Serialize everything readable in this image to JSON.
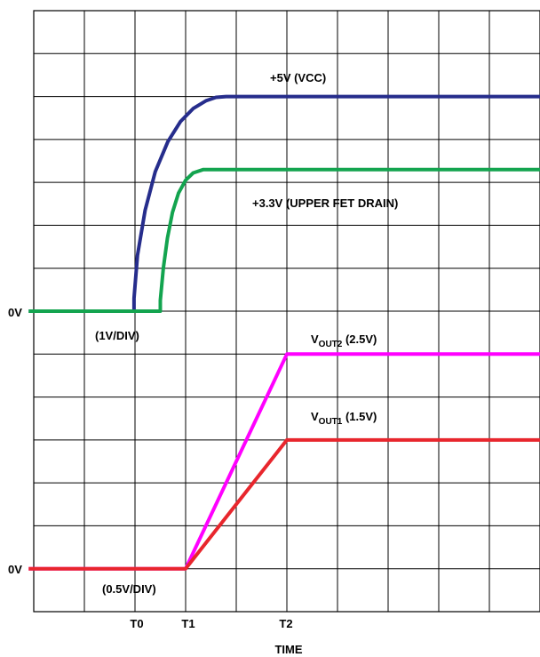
{
  "chart_data": {
    "type": "line",
    "xlabel": "TIME",
    "x_ticks": [
      {
        "label": "T0",
        "x": 2
      },
      {
        "label": "T1",
        "x": 3
      },
      {
        "label": "T2",
        "x": 5
      }
    ],
    "xlim": [
      -0.1,
      10
    ],
    "grid": true,
    "panels": [
      {
        "name": "upper",
        "scale_label": "(1V/DIV)",
        "zero_label": "0V",
        "ylim": [
          -1,
          7
        ],
        "series": [
          {
            "name": "+5V (VCC)",
            "color": "#262d8c",
            "points": [
              [
                -0.1,
                0
              ],
              [
                1.98,
                0
              ],
              [
                1.98,
                0.3
              ],
              [
                2.05,
                1.3
              ],
              [
                2.2,
                2.35
              ],
              [
                2.4,
                3.25
              ],
              [
                2.65,
                3.95
              ],
              [
                2.9,
                4.42
              ],
              [
                3.15,
                4.72
              ],
              [
                3.4,
                4.9
              ],
              [
                3.6,
                4.98
              ],
              [
                3.8,
                5
              ],
              [
                10,
                5
              ]
            ]
          },
          {
            "name": "+3.3V (UPPER FET DRAIN)",
            "color": "#13a44f",
            "points": [
              [
                -0.1,
                0
              ],
              [
                2.5,
                0
              ],
              [
                2.5,
                0.25
              ],
              [
                2.56,
                1.0
              ],
              [
                2.64,
                1.7
              ],
              [
                2.74,
                2.3
              ],
              [
                2.86,
                2.75
              ],
              [
                3.0,
                3.05
              ],
              [
                3.15,
                3.22
              ],
              [
                3.35,
                3.3
              ],
              [
                10,
                3.3
              ]
            ]
          }
        ]
      },
      {
        "name": "lower",
        "scale_label": "(0.5V/DIV)",
        "zero_label": "0V",
        "ylim": [
          -0.25,
          3.5
        ],
        "series": [
          {
            "name": "VOUT2 (2.5V)",
            "label_main": "V",
            "label_sub": "OUT2",
            "label_tail": " (2.5V)",
            "color": "#ff00ff",
            "points": [
              [
                -0.1,
                0
              ],
              [
                3,
                0
              ],
              [
                5,
                2.5
              ],
              [
                10,
                2.5
              ]
            ]
          },
          {
            "name": "VOUT1 (1.5V)",
            "label_main": "V",
            "label_sub": "OUT1",
            "label_tail": " (1.5V)",
            "color": "#e8262d",
            "points": [
              [
                -0.1,
                0
              ],
              [
                3,
                0
              ],
              [
                5,
                1.5
              ],
              [
                10,
                1.5
              ]
            ]
          }
        ]
      }
    ]
  }
}
